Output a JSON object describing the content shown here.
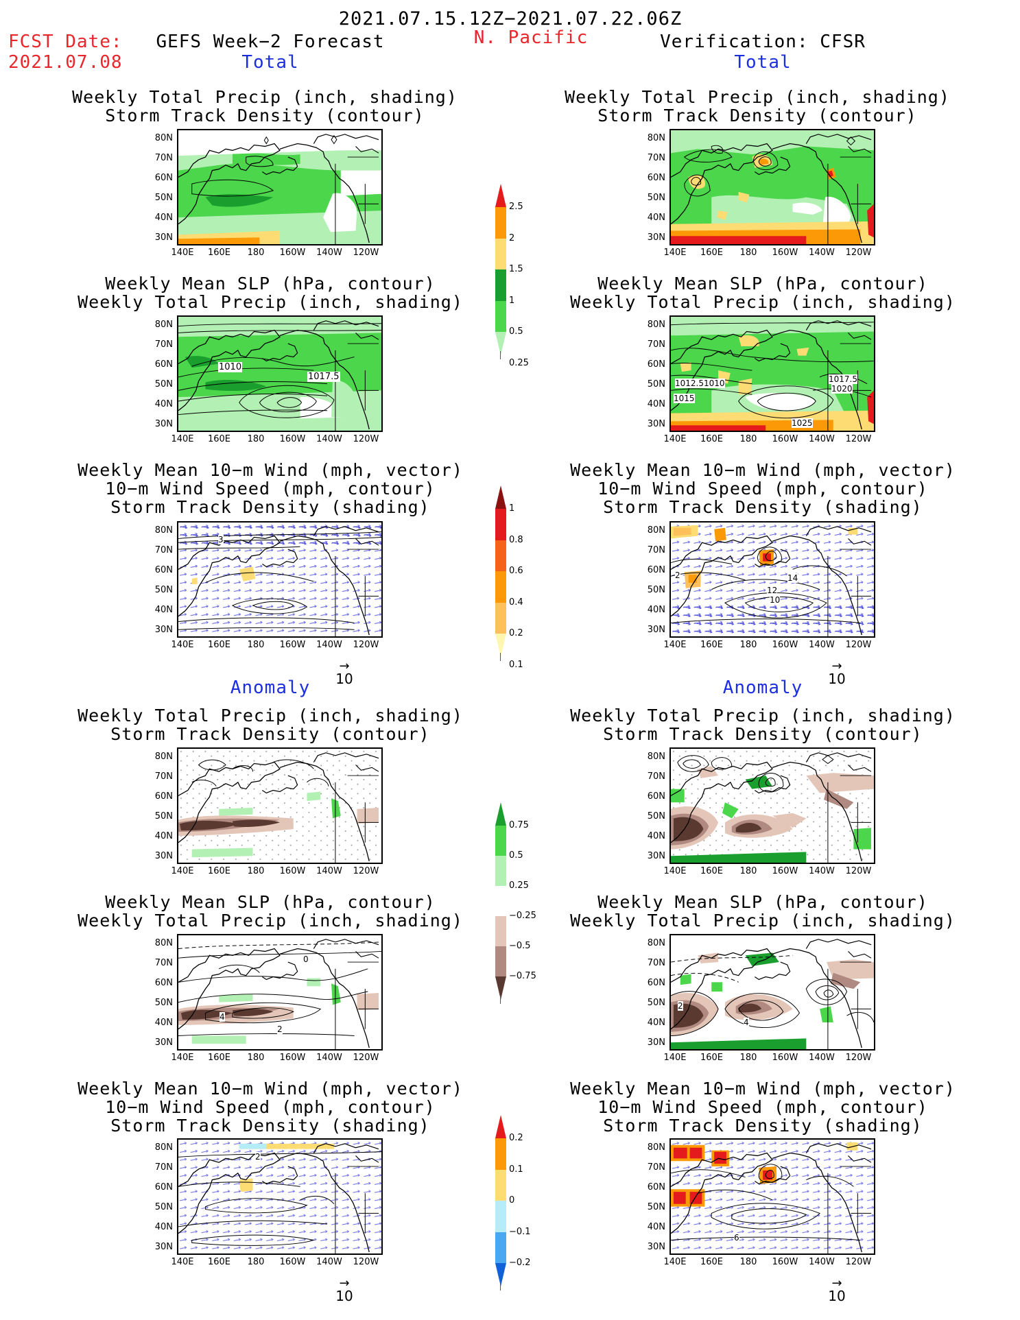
{
  "header": {
    "date_range": "2021.07.15.12Z−2021.07.22.06Z",
    "fcst_label": "FCST Date:",
    "fcst_date": "2021.07.08",
    "left_title": "GEFS Week−2 Forecast",
    "region": "N. Pacific",
    "right_title": "Verification: CFSR"
  },
  "sections": {
    "total": "Total",
    "anomaly": "Anomaly"
  },
  "panel_titles": {
    "precip_track": [
      "Weekly Total Precip (inch, shading)",
      "Storm Track Density (contour)"
    ],
    "slp_precip": [
      "Weekly Mean SLP (hPa, contour)",
      "Weekly Total Precip (inch, shading)"
    ],
    "wind_track": [
      "Weekly Mean 10−m Wind (mph, vector)",
      "10−m Wind Speed (mph, contour)",
      "Storm Track Density (shading)"
    ]
  },
  "axes": {
    "lat_labels": [
      "80N",
      "70N",
      "60N",
      "50N",
      "40N",
      "30N"
    ],
    "lon_labels": [
      "140E",
      "160E",
      "180",
      "160W",
      "140W",
      "120W"
    ]
  },
  "vector_ref": "10",
  "contour_labels": {
    "fc_slp_a": "1010",
    "fc_slp_b": "1017.5",
    "vf_slp_a": "1012.5",
    "vf_slp_b": "1010",
    "vf_slp_c": "1015",
    "vf_slp_d": "1017.5",
    "vf_slp_e": "1020",
    "vf_slp_f": "1025",
    "fc_wind_a": "3",
    "vf_wind_a": "2",
    "vf_wind_b": "14",
    "vf_wind_c": "12",
    "vf_wind_d": "10",
    "fc_anom_slp_a": "0",
    "fc_anom_slp_b": "4",
    "fc_anom_slp_c": "2",
    "vf_anom_slp_a": "2",
    "vf_anom_slp_b": "4",
    "fc_anom_wind_a": "2",
    "vf_anom_wind_a": "6"
  },
  "colorbars": {
    "precip_total": {
      "labels": [
        "2.5",
        "2",
        "1.5",
        "1",
        "0.5",
        "0.25"
      ],
      "colors": [
        "#e41a1c",
        "#fb9a06",
        "#fddc73",
        "#1a9e2e",
        "#4cd64c",
        "#b3f0b3"
      ]
    },
    "track_total": {
      "labels": [
        "1",
        "0.8",
        "0.6",
        "0.4",
        "0.2",
        "0.1"
      ],
      "colors": [
        "#8b1010",
        "#e41a1c",
        "#f5621c",
        "#fb9a06",
        "#fdc05a",
        "#fff6b0"
      ]
    },
    "precip_anom": {
      "labels": [
        "0.75",
        "0.5",
        "0.25",
        "−0.25",
        "−0.5",
        "−0.75"
      ],
      "colors": [
        "#1a9e2e",
        "#4cd64c",
        "#b3f0b3",
        "#ffffff",
        "#e4c6b8",
        "#b08a80",
        "#5a3a30"
      ]
    },
    "track_anom": {
      "labels": [
        "0.2",
        "0.1",
        "0",
        "−0.1",
        "−0.2"
      ],
      "colors": [
        "#e41a1c",
        "#fb9a06",
        "#fddc73",
        "#b4ecf8",
        "#4aa8f0",
        "#1060d8"
      ]
    }
  }
}
